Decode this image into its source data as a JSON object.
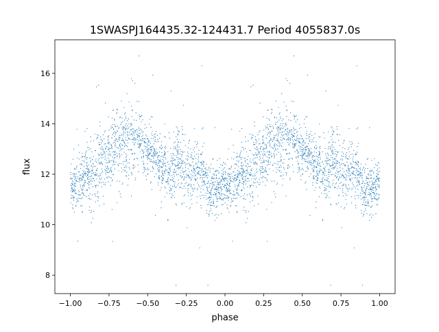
{
  "chart_data": {
    "type": "scatter",
    "title": "1SWASPJ164435.32-124431.7 Period 4055837.0s",
    "xlabel": "phase",
    "ylabel": "flux",
    "xlim": [
      -1.1,
      1.1
    ],
    "ylim": [
      7.27,
      17.33
    ],
    "xticks": [
      -1.0,
      -0.75,
      -0.5,
      -0.25,
      0.0,
      0.25,
      0.5,
      0.75,
      1.0
    ],
    "xtick_labels": [
      "−1.00",
      "−0.75",
      "−0.50",
      "−0.25",
      "0.00",
      "0.25",
      "0.50",
      "0.75",
      "1.00"
    ],
    "yticks": [
      8,
      10,
      12,
      14,
      16
    ],
    "ytick_labels": [
      "8",
      "10",
      "12",
      "14",
      "16"
    ],
    "grid": false,
    "marker_color": "#1f77b4",
    "note": "phase-folded light curve, repeated over two cycles; binned mean flux profile per 0.05 phase over one cycle",
    "profile_phase": [
      0.0,
      0.05,
      0.1,
      0.15,
      0.2,
      0.25,
      0.3,
      0.35,
      0.4,
      0.45,
      0.5,
      0.55,
      0.6,
      0.65,
      0.7,
      0.75,
      0.8,
      0.85,
      0.9,
      0.95
    ],
    "profile_flux": [
      11.6,
      11.5,
      11.9,
      12.0,
      12.6,
      12.6,
      13.1,
      13.2,
      13.4,
      13.3,
      13.0,
      12.8,
      12.2,
      12.0,
      12.5,
      12.2,
      12.3,
      12.0,
      11.4,
      11.3
    ],
    "profile_spread": [
      0.4,
      0.5,
      0.6,
      0.8,
      0.8,
      0.6,
      0.8,
      0.8,
      0.7,
      0.6,
      0.5,
      0.5,
      0.5,
      0.6,
      0.7,
      0.6,
      0.6,
      0.6,
      0.5,
      0.5
    ]
  }
}
